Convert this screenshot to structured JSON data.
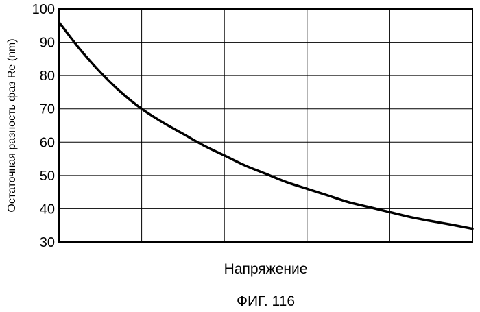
{
  "chart_data": {
    "type": "line",
    "title": "",
    "xlabel": "Напряжение",
    "ylabel": "Остаточная разность фаз Re (nm)",
    "ylim": [
      30,
      100
    ],
    "yticks": [
      30,
      40,
      50,
      60,
      70,
      80,
      90,
      100
    ],
    "xlim": [
      0,
      5
    ],
    "x_gridlines": 5,
    "grid": true,
    "x_tick_labels_shown": false,
    "legend": "none",
    "line_color": "#000000",
    "series": [
      {
        "x": [
          0,
          0.25,
          0.5,
          0.75,
          1.0,
          1.25,
          1.5,
          1.75,
          2.0,
          2.25,
          2.5,
          2.75,
          3.0,
          3.25,
          3.5,
          3.75,
          4.0,
          4.25,
          4.5,
          4.75,
          5.0
        ],
        "values": [
          96,
          88,
          81,
          75,
          70,
          66,
          62.5,
          59,
          56,
          53,
          50.5,
          48,
          46,
          44,
          42,
          40.5,
          39,
          37.5,
          36.3,
          35.2,
          34
        ]
      }
    ]
  },
  "figure_caption": "ФИГ. 116"
}
